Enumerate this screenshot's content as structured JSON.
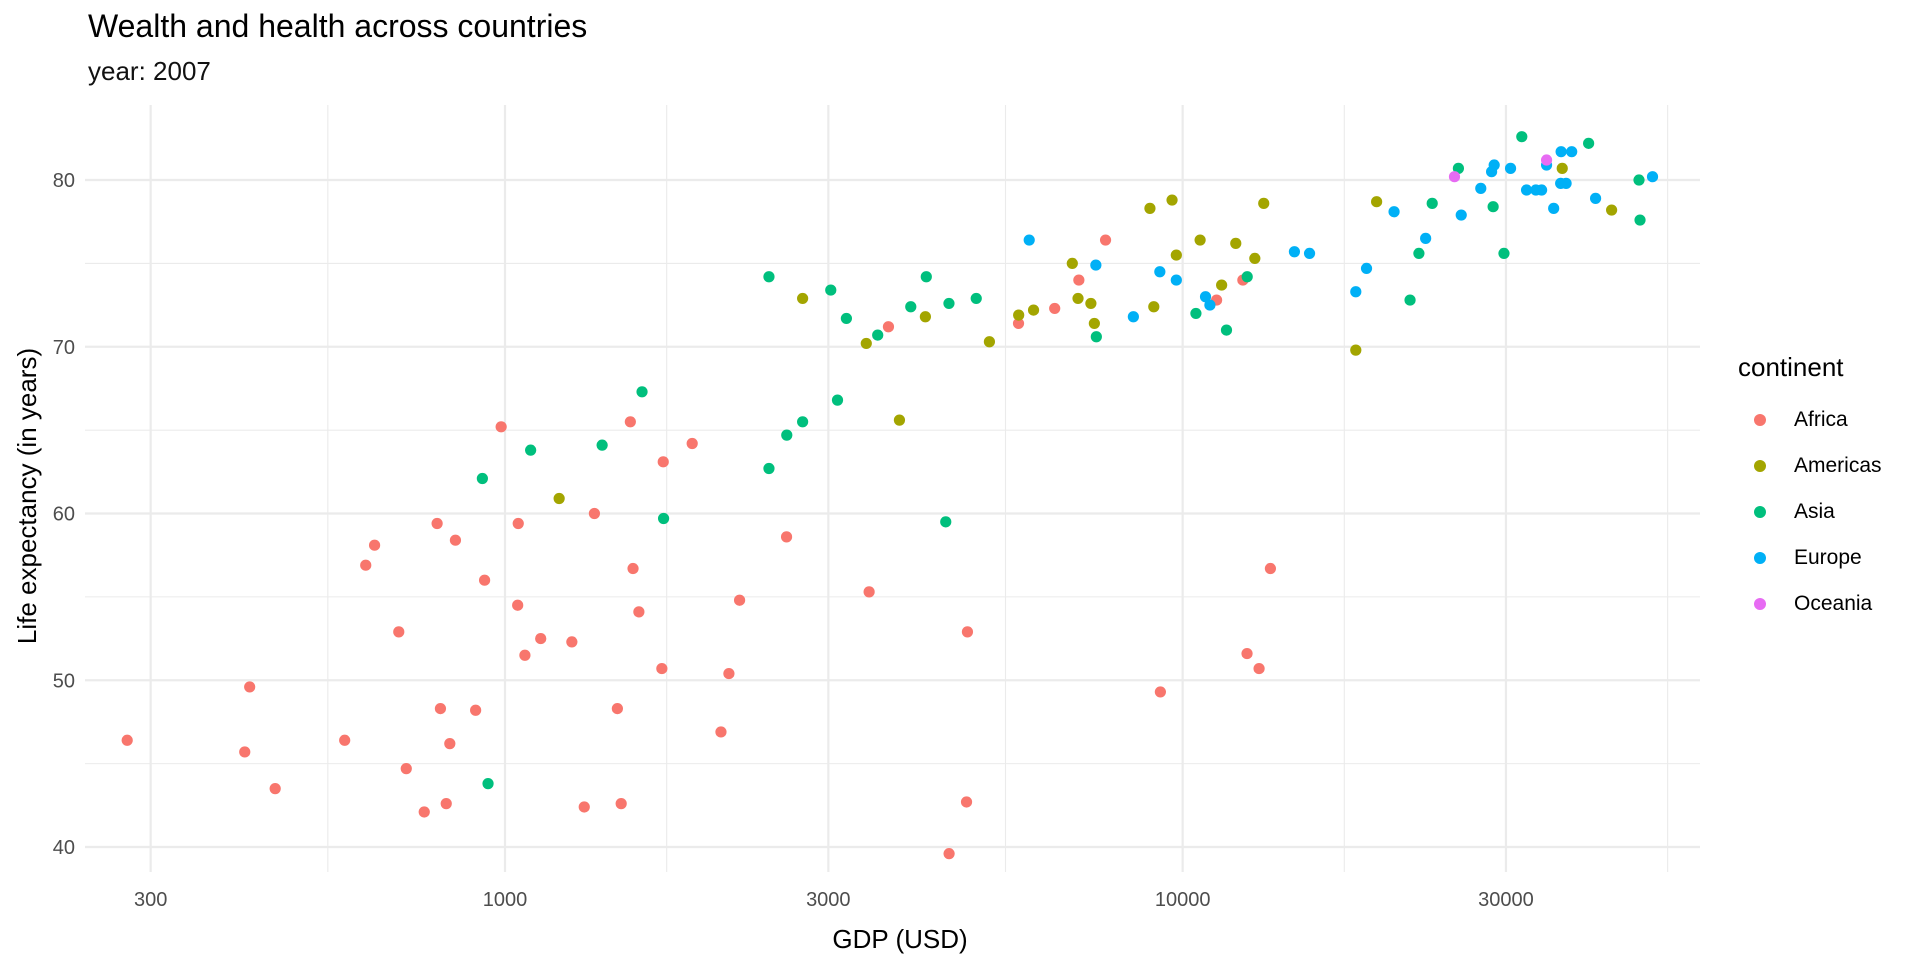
{
  "chart_data": {
    "type": "scatter",
    "title": "Wealth and health across countries",
    "subtitle": "year: 2007",
    "xlabel": "GDP (USD)",
    "ylabel": "Life expectancy (in years)",
    "x_scale": "log10",
    "xlim": [
      240,
      58000
    ],
    "ylim": [
      38.5,
      84.5
    ],
    "x_ticks": [
      300,
      1000,
      3000,
      10000,
      30000
    ],
    "x_tick_labels": [
      "300",
      "1000",
      "3000",
      "10000",
      "30000"
    ],
    "y_ticks": [
      40,
      50,
      60,
      70,
      80
    ],
    "y_tick_labels": [
      "40",
      "50",
      "60",
      "70",
      "80"
    ],
    "grid": true,
    "legend": {
      "title": "continent",
      "placement": "right"
    },
    "series": [
      {
        "name": "Africa",
        "color": "#F8766D",
        "points": [
          [
            277,
            46.4
          ],
          [
            420,
            49.6
          ],
          [
            413,
            45.7
          ],
          [
            458,
            43.5
          ],
          [
            580,
            46.4
          ],
          [
            623,
            56.9
          ],
          [
            642,
            58.1
          ],
          [
            697,
            52.9
          ],
          [
            715,
            44.7
          ],
          [
            760,
            42.1
          ],
          [
            794,
            59.4
          ],
          [
            803,
            48.3
          ],
          [
            819,
            42.6
          ],
          [
            829,
            46.2
          ],
          [
            845,
            58.4
          ],
          [
            905,
            48.2
          ],
          [
            933,
            56.0
          ],
          [
            987,
            65.2
          ],
          [
            1044,
            54.5
          ],
          [
            1046,
            59.4
          ],
          [
            1070,
            51.5
          ],
          [
            1129,
            52.5
          ],
          [
            1255,
            52.3
          ],
          [
            1309,
            42.4
          ],
          [
            1355,
            60.0
          ],
          [
            1484,
            42.6
          ],
          [
            1465,
            48.3
          ],
          [
            1545,
            56.7
          ],
          [
            1576,
            54.1
          ],
          [
            1704,
            50.7
          ],
          [
            1712,
            63.1
          ],
          [
            1531,
            65.5
          ],
          [
            1889,
            64.2
          ],
          [
            2083,
            46.9
          ],
          [
            2140,
            50.4
          ],
          [
            2219,
            54.8
          ],
          [
            2603,
            58.6
          ],
          [
            3446,
            55.3
          ],
          [
            3680,
            71.2
          ],
          [
            4522,
            39.6
          ],
          [
            4798,
            42.7
          ],
          [
            4813,
            52.9
          ],
          [
            5725,
            71.4
          ],
          [
            6474,
            72.3
          ],
          [
            7028,
            74.0
          ],
          [
            7695,
            76.4
          ],
          [
            9271,
            49.3
          ],
          [
            11222,
            72.8
          ],
          [
            12270,
            74.0
          ],
          [
            12445,
            51.6
          ],
          [
            12965,
            50.7
          ],
          [
            13474,
            56.7
          ]
        ]
      },
      {
        "name": "Americas",
        "color": "#A3A500",
        "points": [
          [
            1202,
            60.9
          ],
          [
            2749,
            72.9
          ],
          [
            3413,
            70.2
          ],
          [
            3820,
            65.6
          ],
          [
            4172,
            71.8
          ],
          [
            5186,
            70.3
          ],
          [
            5728,
            71.9
          ],
          [
            6025,
            72.2
          ],
          [
            6873,
            75.0
          ],
          [
            7008,
            72.9
          ],
          [
            7321,
            72.6
          ],
          [
            7408,
            71.4
          ],
          [
            8948,
            78.3
          ],
          [
            9066,
            72.4
          ],
          [
            9646,
            78.8
          ],
          [
            9787,
            75.5
          ],
          [
            10611,
            76.4
          ],
          [
            11416,
            73.7
          ],
          [
            11978,
            76.2
          ],
          [
            12779,
            75.3
          ],
          [
            13172,
            78.6
          ],
          [
            18009,
            69.8
          ],
          [
            19329,
            78.7
          ],
          [
            36319,
            80.7
          ],
          [
            42952,
            78.2
          ]
        ]
      },
      {
        "name": "Asia",
        "color": "#00BF7D",
        "points": [
          [
            944,
            43.8
          ],
          [
            926,
            62.1
          ],
          [
            1091,
            63.8
          ],
          [
            1391,
            64.1
          ],
          [
            1593,
            67.3
          ],
          [
            1714,
            59.7
          ],
          [
            2452,
            62.7
          ],
          [
            2605,
            64.7
          ],
          [
            2749,
            65.5
          ],
          [
            2452,
            74.2
          ],
          [
            3025,
            73.4
          ],
          [
            3095,
            66.8
          ],
          [
            3190,
            71.7
          ],
          [
            3548,
            70.7
          ],
          [
            3970,
            72.4
          ],
          [
            4185,
            74.2
          ],
          [
            4471,
            59.5
          ],
          [
            4520,
            72.6
          ],
          [
            4959,
            72.9
          ],
          [
            7458,
            70.6
          ],
          [
            10461,
            72.0
          ],
          [
            11606,
            71.0
          ],
          [
            12452,
            74.2
          ],
          [
            21655,
            72.8
          ],
          [
            22316,
            75.6
          ],
          [
            23348,
            78.6
          ],
          [
            25523,
            80.7
          ],
          [
            28718,
            78.4
          ],
          [
            29796,
            75.6
          ],
          [
            31656,
            82.6
          ],
          [
            39725,
            82.2
          ],
          [
            47143,
            80.0
          ],
          [
            47307,
            77.6
          ]
        ]
      },
      {
        "name": "Europe",
        "color": "#00B0F6",
        "points": [
          [
            5937,
            76.4
          ],
          [
            7446,
            74.9
          ],
          [
            8458,
            71.8
          ],
          [
            9254,
            74.5
          ],
          [
            9787,
            74.0
          ],
          [
            10808,
            73.0
          ],
          [
            10970,
            72.5
          ],
          [
            14619,
            75.7
          ],
          [
            15390,
            75.6
          ],
          [
            18009,
            73.3
          ],
          [
            18678,
            74.7
          ],
          [
            20510,
            78.1
          ],
          [
            22833,
            76.5
          ],
          [
            25768,
            77.9
          ],
          [
            27538,
            79.5
          ],
          [
            28569,
            80.5
          ],
          [
            28821,
            80.9
          ],
          [
            30470,
            80.7
          ],
          [
            32170,
            79.4
          ],
          [
            33207,
            79.4
          ],
          [
            33860,
            79.4
          ],
          [
            34435,
            80.9
          ],
          [
            35278,
            78.3
          ],
          [
            36126,
            79.8
          ],
          [
            36181,
            81.7
          ],
          [
            36798,
            79.8
          ],
          [
            37506,
            81.7
          ],
          [
            40676,
            78.9
          ],
          [
            49357,
            80.2
          ]
        ]
      },
      {
        "name": "Oceania",
        "color": "#E76BF3",
        "points": [
          [
            25185,
            80.2
          ],
          [
            34435,
            81.2
          ]
        ]
      }
    ]
  }
}
